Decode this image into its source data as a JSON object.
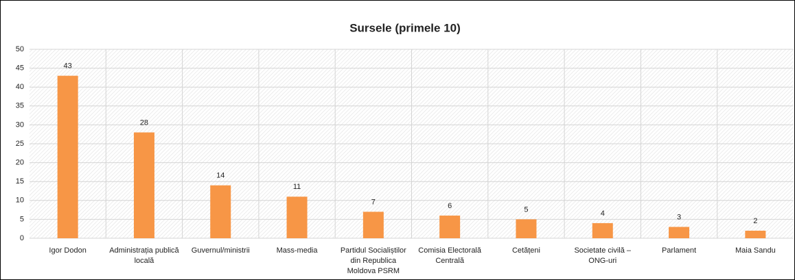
{
  "chart_data": {
    "type": "bar",
    "title": "Sursele (primele 10)",
    "categories": [
      "Igor Dodon",
      "Administrația publică locală",
      "Guvernul/ministrii",
      "Mass-media",
      "Partidul Socialiștilor din Republica Moldova PSRM",
      "Comisia Electorală Centrală",
      "Cetățeni",
      "Societate civilă – ONG-uri",
      "Parlament",
      "Maia Sandu"
    ],
    "values": [
      43,
      28,
      14,
      11,
      7,
      6,
      5,
      4,
      3,
      2
    ],
    "color": "#f79646",
    "ylim": [
      0,
      50
    ],
    "yticks": [
      0,
      5,
      10,
      15,
      20,
      25,
      30,
      35,
      40,
      45,
      50
    ],
    "grid": true
  }
}
